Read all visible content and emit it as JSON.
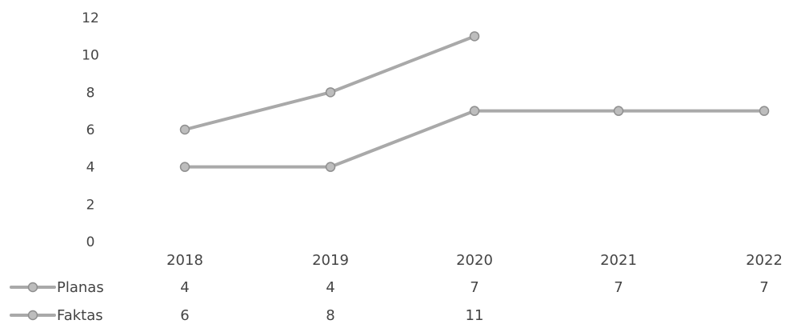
{
  "chart_data": {
    "type": "line",
    "categories": [
      "2018",
      "2019",
      "2020",
      "2021",
      "2022"
    ],
    "series": [
      {
        "name": "Planas",
        "values": [
          4,
          4,
          7,
          7,
          7
        ],
        "color": "#a9a9a9"
      },
      {
        "name": "Faktas",
        "values": [
          6,
          8,
          11,
          null,
          null
        ],
        "color": "#a9a9a9"
      }
    ],
    "y_ticks": [
      "0",
      "2",
      "4",
      "6",
      "8",
      "10",
      "12"
    ],
    "ylim": [
      0,
      12
    ],
    "grid": false,
    "legend": "data-table-left",
    "data_table": {
      "rows": [
        {
          "name": "Planas",
          "cells": [
            "4",
            "4",
            "7",
            "7",
            "7"
          ]
        },
        {
          "name": "Faktas",
          "cells": [
            "6",
            "8",
            "11",
            "",
            ""
          ]
        }
      ]
    }
  }
}
